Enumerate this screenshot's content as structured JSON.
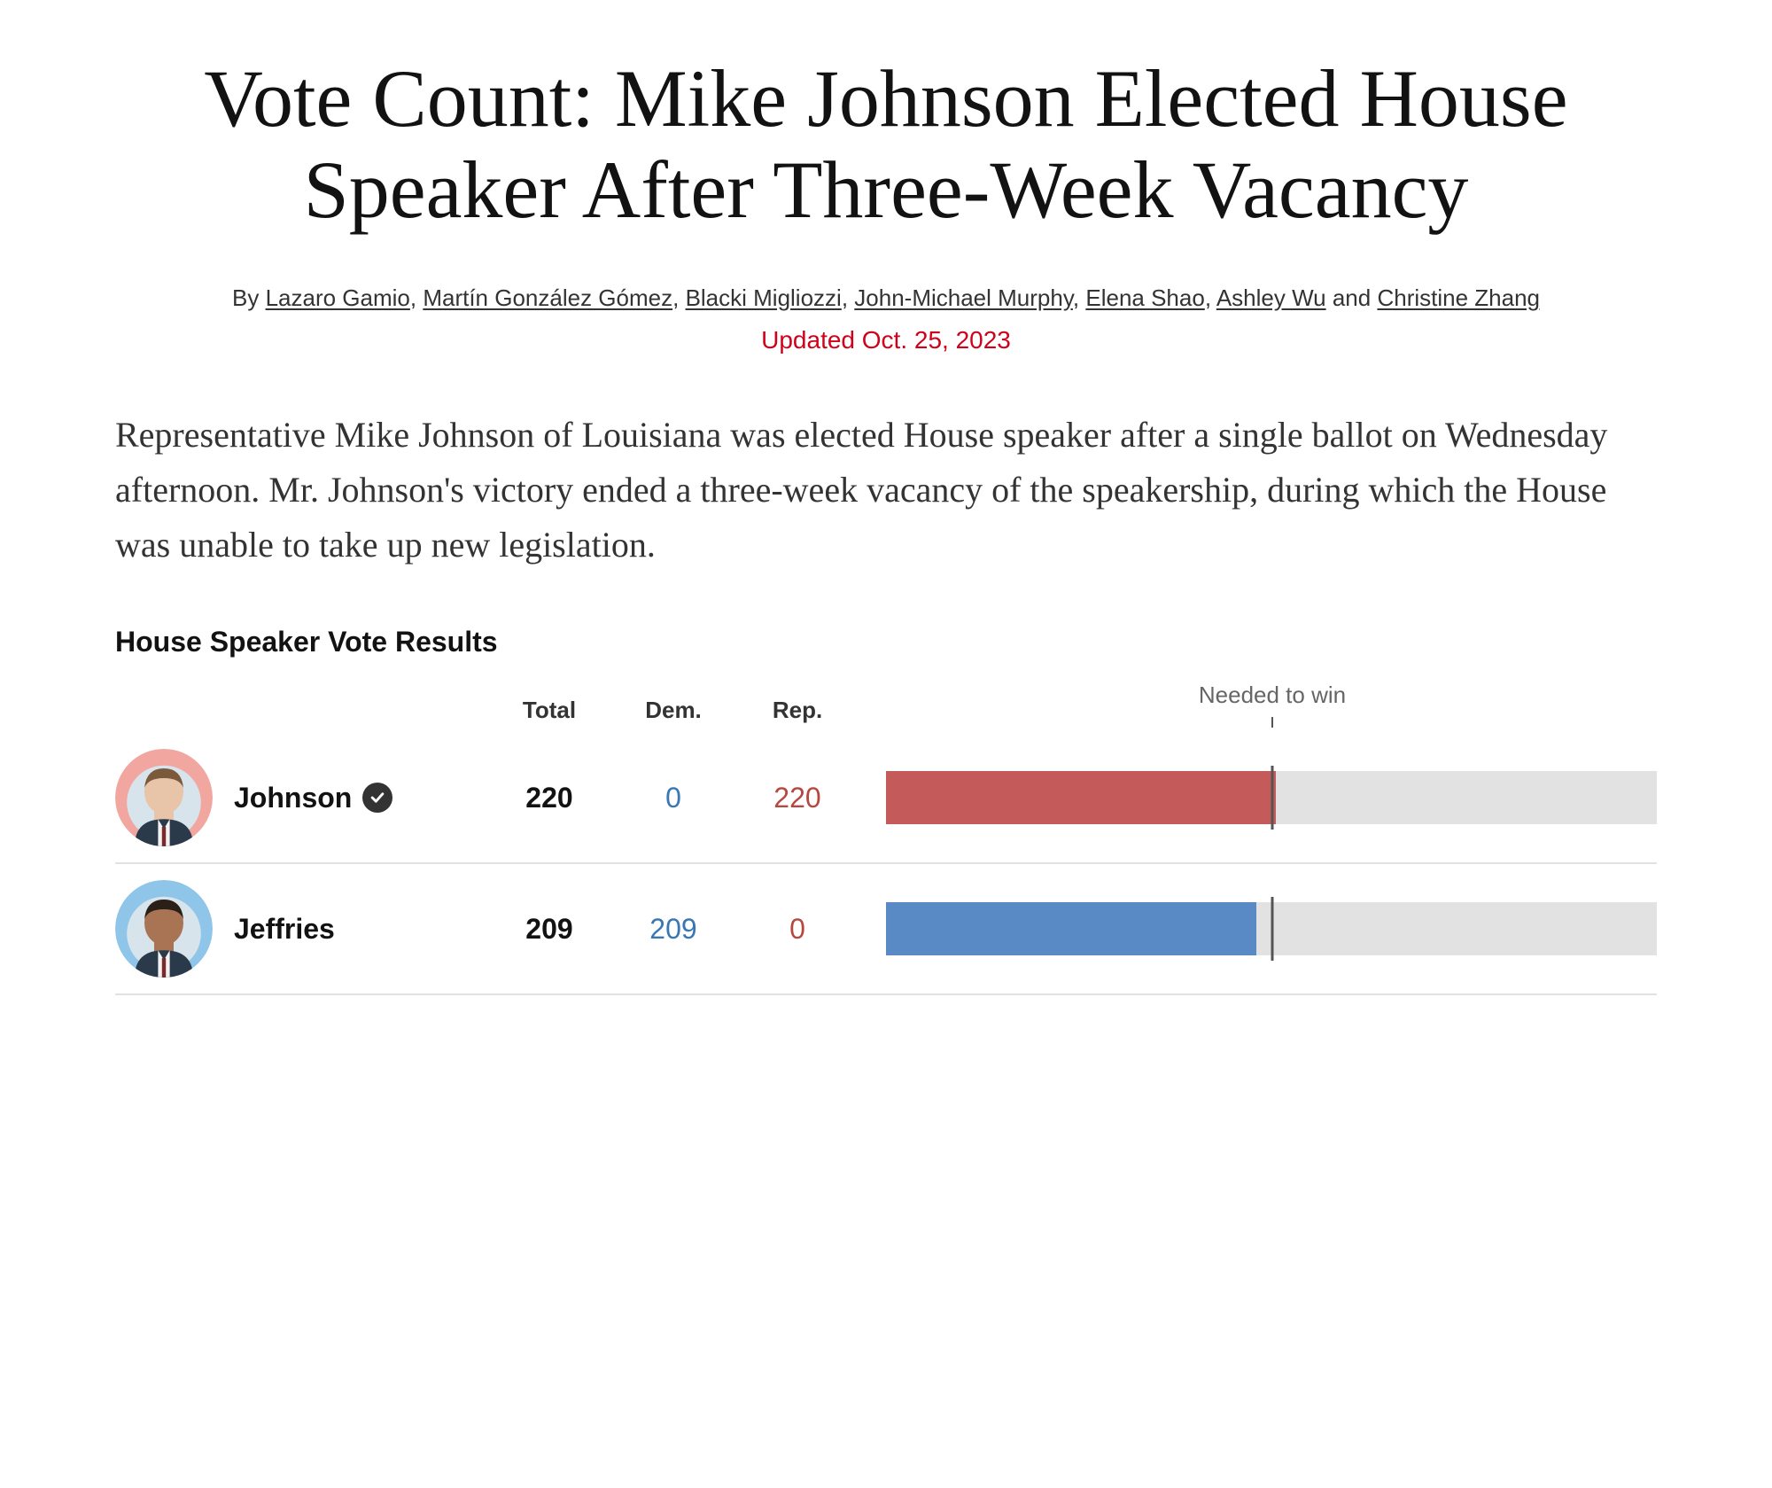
{
  "headline": "Vote Count: Mike Johnson Elected House Speaker After Three-Week Vacancy",
  "byline": {
    "prefix": "By ",
    "authors": [
      "Lazaro Gamio",
      "Martín González Gómez",
      "Blacki Migliozzi",
      "John-Michael Murphy",
      "Elena Shao",
      "Ashley Wu",
      "Christine Zhang"
    ]
  },
  "updated": "Updated Oct. 25, 2023",
  "lede": "Representative Mike Johnson of Louisiana was elected House speaker after a single ballot on Wednesday afternoon. Mr. Johnson's victory ended a three-week vacancy of the speakership, during which the House was unable to take up new legislation.",
  "results": {
    "title": "House Speaker Vote Results",
    "columns": {
      "total": "Total",
      "dem": "Dem.",
      "rep": "Rep."
    },
    "needed_label": "Needed to win",
    "bar_max": 435,
    "threshold": 218,
    "colors": {
      "dem": "#5a8ac6",
      "rep": "#c55a5a",
      "dem_text": "#3977b3",
      "rep_text": "#b64840",
      "track": "#e2e2e2",
      "threshold": "#555555",
      "avatar_ring_rep": "#f2a6a0",
      "avatar_ring_dem": "#8fc5e8"
    },
    "candidates": [
      {
        "name": "Johnson",
        "winner": true,
        "total": 220,
        "dem": 0,
        "rep": 220,
        "party": "rep",
        "avatar_ring": "#f2a6a0",
        "skin": "#e8c4a8",
        "hair": "#7a5a3a"
      },
      {
        "name": "Jeffries",
        "winner": false,
        "total": 209,
        "dem": 209,
        "rep": 0,
        "party": "dem",
        "avatar_ring": "#8fc5e8",
        "skin": "#a87454",
        "hair": "#2a2018"
      }
    ]
  }
}
